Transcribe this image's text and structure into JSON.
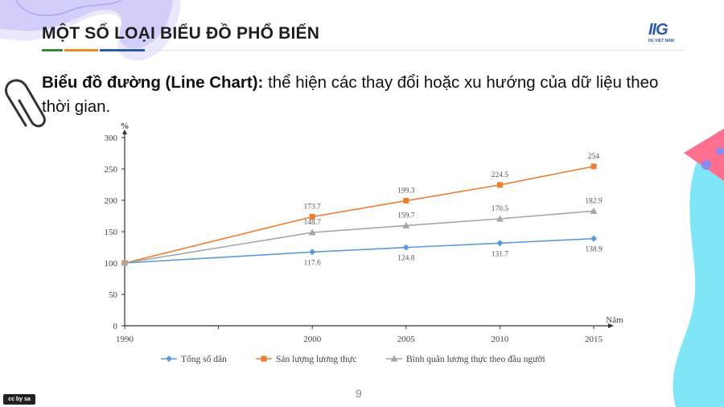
{
  "header": {
    "title": "MỘT SỐ LOẠI BIỂU ĐỒ PHỔ BIẾN",
    "accent_colors": [
      "#3a8a3a",
      "#f08a24",
      "#2d5aa8"
    ]
  },
  "logo": {
    "mark": "IIG",
    "text": "IIG VIET NAM"
  },
  "description": {
    "bold": "Biểu đồ đường (Line Chart):",
    "text": " thể hiện các thay đổi hoặc xu hướng của dữ liệu theo thời gian."
  },
  "chart_data": {
    "type": "line",
    "x": [
      1990,
      2000,
      2005,
      2010,
      2015
    ],
    "xticks": [
      "1990",
      "2000",
      "2005",
      "2010",
      "2015"
    ],
    "xlabel": "Năm",
    "ylabel": "%",
    "ylim": [
      0,
      300
    ],
    "yticks": [
      "0",
      "50",
      "100",
      "150",
      "200",
      "250",
      "300"
    ],
    "legend_position": "bottom",
    "series": [
      {
        "name": "Tổng số dân",
        "color": "#5b9bd5",
        "marker": "diamond",
        "values": [
          100,
          117.6,
          124.8,
          131.7,
          138.9
        ],
        "labels": [
          "",
          "117.6",
          "124.8",
          "131.7",
          "138.9"
        ]
      },
      {
        "name": "Sản lượng lương thực",
        "color": "#ed7d31",
        "marker": "square",
        "values": [
          100,
          173.7,
          199.3,
          224.5,
          254
        ],
        "labels": [
          "",
          "173.7",
          "199.3",
          "224.5",
          "254"
        ]
      },
      {
        "name": "Bình quân lương thực theo đầu người",
        "color": "#a5a5a5",
        "marker": "triangle",
        "values": [
          100,
          148.7,
          159.7,
          170.5,
          182.9
        ],
        "labels": [
          "",
          "148.7",
          "159.7",
          "170.5",
          "182.9"
        ]
      }
    ]
  },
  "footer": {
    "page_number": "9",
    "license_badge": "cc by sa"
  },
  "decor_colors": {
    "purple": "#8e88f0",
    "cyan": "#7fe5f5",
    "pink": "#ff6b8a"
  }
}
